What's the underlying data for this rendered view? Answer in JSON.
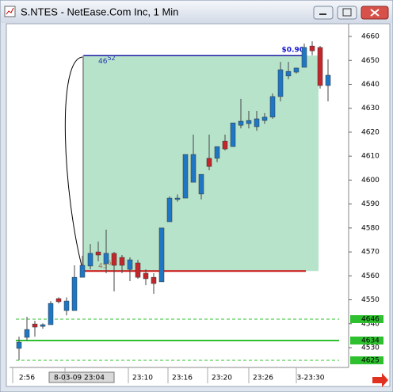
{
  "window": {
    "title": "S.NTES - NetEase.Com Inc, 1 Min"
  },
  "chart_data": {
    "type": "candlestick",
    "up_color": "#1f77c4",
    "down_color": "#c4262b",
    "ylim": [
      4522.4,
      4665.3
    ],
    "yticks": [
      4660,
      4650,
      4640,
      4630,
      4620,
      4610,
      4600,
      4590,
      4580,
      4570,
      4560,
      4550,
      4540,
      4530
    ],
    "x_labels": [
      "2:56",
      "8-03-09 23:04",
      "23:10",
      "23:16",
      "23:20",
      "23:26",
      "3-23:30"
    ],
    "series": {
      "open": [
        4529.7,
        4534.3,
        4539.9,
        4538.9,
        4539.6,
        4550.5,
        4545.5,
        4545.5,
        4559.4,
        4564.1,
        4570.0,
        4565.1,
        4569.4,
        4567.7,
        4562.7,
        4565.4,
        4561.1,
        4559.4,
        4557.5,
        4582.6,
        4591.9,
        4592.5,
        4599.1,
        4594.2,
        4609.1,
        4609.1,
        4616.3,
        4614.0,
        4622.9,
        4623.6,
        4622.3,
        4624.9,
        4626.3,
        4634.9,
        4643.5,
        4645.1,
        4647.1,
        4656.0,
        4655.4,
        4639.5
      ],
      "high": [
        4534.6,
        4542.9,
        4541.2,
        4540.2,
        4549.5,
        4551.0,
        4551.0,
        4564.4,
        4568.4,
        4573.3,
        4574.3,
        4579.3,
        4570.0,
        4568.7,
        4567.7,
        4566.7,
        4562.7,
        4561.1,
        4580.0,
        4593.2,
        4594.0,
        4610.7,
        4619.0,
        4602.4,
        4619.0,
        4614.0,
        4619.0,
        4623.9,
        4633.9,
        4628.9,
        4628.9,
        4628.0,
        4636.2,
        4649.4,
        4649.4,
        4647.0,
        4657.0,
        4658.0,
        4656.0,
        4650.4
      ],
      "low": [
        4524.7,
        4533.0,
        4534.6,
        4537.9,
        4539.6,
        4548.5,
        4543.5,
        4545.5,
        4559.4,
        4562.7,
        4566.1,
        4561.1,
        4553.5,
        4561.1,
        4557.8,
        4558.8,
        4556.1,
        4552.5,
        4557.5,
        4582.6,
        4591.0,
        4592.5,
        4599.1,
        4591.9,
        4604.1,
        4607.5,
        4612.4,
        4614.0,
        4621.6,
        4621.6,
        4620.6,
        4623.5,
        4625.6,
        4632.9,
        4642.1,
        4644.5,
        4647.1,
        4652.1,
        4638.2,
        4632.9
      ],
      "close": [
        4532.3,
        4537.6,
        4538.6,
        4539.6,
        4548.5,
        4549.2,
        4549.5,
        4559.4,
        4564.4,
        4569.4,
        4568.7,
        4569.4,
        4564.4,
        4564.4,
        4566.7,
        4559.4,
        4558.8,
        4556.8,
        4580.0,
        4592.5,
        4592.5,
        4610.7,
        4610.7,
        4602.4,
        4605.7,
        4614.0,
        4613.0,
        4623.9,
        4624.6,
        4624.9,
        4625.6,
        4626.3,
        4634.9,
        4646.1,
        4645.4,
        4646.8,
        4655.4,
        4654.0,
        4639.5,
        4643.8
      ]
    },
    "measure": {
      "top": 4652,
      "bottom": 4562,
      "fill": "#b4e2c8",
      "top_label": {
        "main": "46",
        "sup": "52"
      },
      "bottom_label": {
        "main": "45",
        "sup": "62"
      },
      "change_label": "$0.90"
    },
    "levels": [
      {
        "label": "4646",
        "style": "dashed"
      },
      {
        "label": "4634",
        "style": "solid"
      },
      {
        "label": "4625",
        "style": "dashed"
      }
    ],
    "level_color": "#2fc02f"
  }
}
